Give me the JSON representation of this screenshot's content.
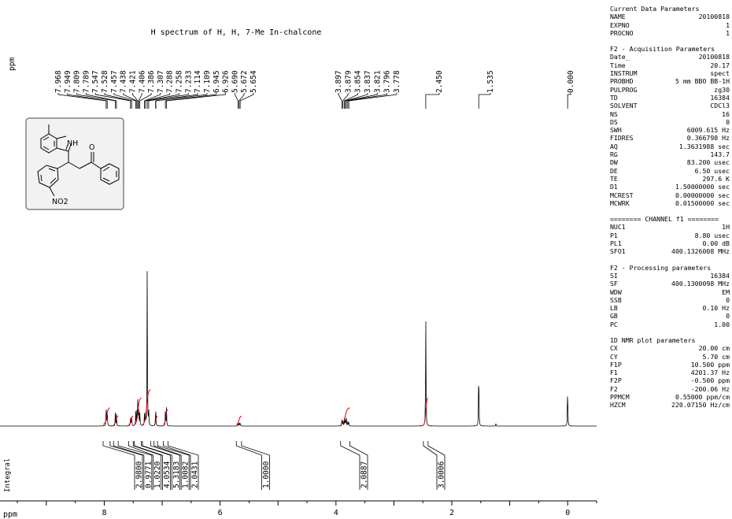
{
  "chart_data": {
    "type": "line",
    "title": "H spectrum of H, H, 7-Me In-chalcone",
    "xlabel": "ppm",
    "peak_axis_label": "ppm",
    "integral_axis_label": "Integral",
    "xlim": [
      9.8,
      -0.5
    ],
    "x_ticks": [
      8,
      6,
      4,
      2,
      0
    ],
    "peak_labels": [
      "7.968",
      "7.949",
      "7.809",
      "7.789",
      "7.547",
      "7.528",
      "7.457",
      "7.438",
      "7.421",
      "7.406",
      "7.386",
      "7.307",
      "7.288",
      "7.258",
      "7.233",
      "7.114",
      "7.109",
      "6.945",
      "6.926",
      "5.690",
      "5.672",
      "5.654",
      "3.897",
      "3.879",
      "3.854",
      "3.837",
      "3.821",
      "3.796",
      "3.778",
      "2.450",
      "1.535",
      "0.000"
    ],
    "peaks": [
      {
        "ppm": 7.968,
        "h": 0.14
      },
      {
        "ppm": 7.949,
        "h": 0.13
      },
      {
        "ppm": 7.809,
        "h": 0.08
      },
      {
        "ppm": 7.789,
        "h": 0.07
      },
      {
        "ppm": 7.547,
        "h": 0.07
      },
      {
        "ppm": 7.528,
        "h": 0.08
      },
      {
        "ppm": 7.457,
        "h": 0.09
      },
      {
        "ppm": 7.438,
        "h": 0.12
      },
      {
        "ppm": 7.421,
        "h": 0.16
      },
      {
        "ppm": 7.406,
        "h": 0.13
      },
      {
        "ppm": 7.386,
        "h": 0.1
      },
      {
        "ppm": 7.307,
        "h": 0.07
      },
      {
        "ppm": 7.288,
        "h": 0.08
      },
      {
        "ppm": 7.258,
        "h": 1.0
      },
      {
        "ppm": 7.233,
        "h": 0.09
      },
      {
        "ppm": 7.114,
        "h": 0.07
      },
      {
        "ppm": 7.109,
        "h": 0.06
      },
      {
        "ppm": 6.945,
        "h": 0.1
      },
      {
        "ppm": 6.926,
        "h": 0.11
      },
      {
        "ppm": 5.69,
        "h": 0.02
      },
      {
        "ppm": 5.672,
        "h": 0.025
      },
      {
        "ppm": 5.654,
        "h": 0.02
      },
      {
        "ppm": 3.897,
        "h": 0.04
      },
      {
        "ppm": 3.879,
        "h": 0.045
      },
      {
        "ppm": 3.854,
        "h": 0.05
      },
      {
        "ppm": 3.837,
        "h": 0.05
      },
      {
        "ppm": 3.821,
        "h": 0.045
      },
      {
        "ppm": 3.796,
        "h": 0.035
      },
      {
        "ppm": 3.778,
        "h": 0.03
      },
      {
        "ppm": 2.45,
        "h": 0.72
      },
      {
        "ppm": 1.535,
        "h": 0.45
      },
      {
        "ppm": 1.24,
        "h": 0.015
      },
      {
        "ppm": 0.0,
        "h": 0.29
      }
    ],
    "integrals": [
      {
        "from": 8.02,
        "to": 7.9,
        "value": "2.9800",
        "h": 0.1
      },
      {
        "from": 7.84,
        "to": 7.76,
        "value": "0.9771",
        "h": 0.05
      },
      {
        "from": 7.58,
        "to": 7.5,
        "value": "1.0220",
        "h": 0.05
      },
      {
        "from": 7.48,
        "to": 7.36,
        "value": "4.0534",
        "h": 0.16
      },
      {
        "from": 7.34,
        "to": 7.2,
        "value": "5.3183",
        "h": 0.21
      },
      {
        "from": 7.14,
        "to": 7.08,
        "value": "1.0082",
        "h": 0.05
      },
      {
        "from": 6.98,
        "to": 6.9,
        "value": "2.0431",
        "h": 0.09
      },
      {
        "from": 5.72,
        "to": 5.63,
        "value": "1.0000",
        "h": 0.05
      },
      {
        "from": 3.92,
        "to": 3.76,
        "value": "2.0887",
        "h": 0.1
      },
      {
        "from": 2.49,
        "to": 2.41,
        "value": "3.0006",
        "h": 0.16
      }
    ],
    "line_color": "#000000",
    "integral_color": "#e8000b"
  },
  "structure": {
    "atom_labels": [
      "NH",
      "O",
      "NO2"
    ]
  },
  "parameters": [
    {
      "title": "Current Data Parameters",
      "rows": [
        [
          "NAME",
          "20100818"
        ],
        [
          "EXPNO",
          "1"
        ],
        [
          "PROCNO",
          "1"
        ]
      ]
    },
    {
      "title": "F2 - Acquisition Parameters",
      "rows": [
        [
          "Date_",
          "20100818"
        ],
        [
          "Time",
          "20.17"
        ],
        [
          "INSTRUM",
          "spect"
        ],
        [
          "PROBHD",
          "5 mm BBO BB-1H"
        ],
        [
          "PULPROG",
          "zg30"
        ],
        [
          "TD",
          "16384"
        ],
        [
          "SOLVENT",
          "CDCl3"
        ],
        [
          "NS",
          "16"
        ],
        [
          "DS",
          "0"
        ],
        [
          "SWH",
          "6009.615 Hz"
        ],
        [
          "FIDRES",
          "0.366798 Hz"
        ],
        [
          "AQ",
          "1.3631988 sec"
        ],
        [
          "RG",
          "143.7"
        ],
        [
          "DW",
          "83.200 usec"
        ],
        [
          "DE",
          "6.50 usec"
        ],
        [
          "TE",
          "297.6 K"
        ],
        [
          "D1",
          "1.50000000 sec"
        ],
        [
          "MCREST",
          "0.00000000 sec"
        ],
        [
          "MCWRK",
          "0.01500000 sec"
        ]
      ]
    },
    {
      "title": "======== CHANNEL f1 ========",
      "rows": [
        [
          "NUC1",
          "1H"
        ],
        [
          "P1",
          "8.80 usec"
        ],
        [
          "PL1",
          "0.00 dB"
        ],
        [
          "SFO1",
          "400.1326008 MHz"
        ]
      ]
    },
    {
      "title": "F2 - Processing parameters",
      "rows": [
        [
          "SI",
          "16384"
        ],
        [
          "SF",
          "400.1300098 MHz"
        ],
        [
          "WDW",
          "EM"
        ],
        [
          "SSB",
          "0"
        ],
        [
          "LB",
          "0.10 Hz"
        ],
        [
          "GB",
          "0"
        ],
        [
          "PC",
          "1.00"
        ]
      ]
    },
    {
      "title": "1D NMR plot parameters",
      "rows": [
        [
          "CX",
          "20.00 cm"
        ],
        [
          "CY",
          "5.70 cm"
        ],
        [
          "F1P",
          "10.500 ppm"
        ],
        [
          "F1",
          "4201.37 Hz"
        ],
        [
          "F2P",
          "-0.500 ppm"
        ],
        [
          "F2",
          "-200.06 Hz"
        ],
        [
          "PPMCM",
          "0.55000 ppm/cm"
        ],
        [
          "HZCM",
          "220.07150 Hz/cm"
        ]
      ]
    }
  ]
}
